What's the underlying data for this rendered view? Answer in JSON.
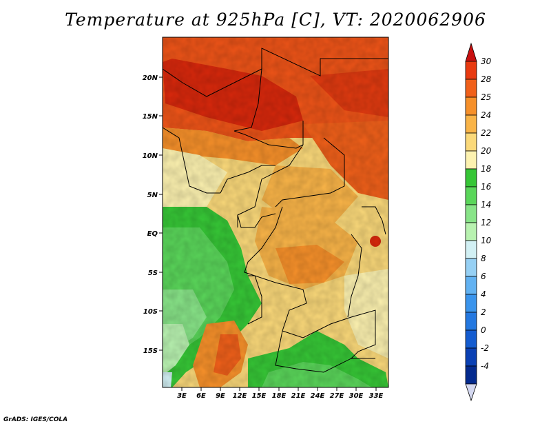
{
  "title": "Temperature at 925hPa [C], VT: 2020062906",
  "credit": "GrADS: IGES/COLA",
  "map": {
    "lat_labels": [
      "20N",
      "15N",
      "10N",
      "5N",
      "EQ",
      "5S",
      "10S",
      "15S"
    ],
    "lon_labels": [
      "3E",
      "6E",
      "9E",
      "12E",
      "15E",
      "18E",
      "21E",
      "24E",
      "27E",
      "30E",
      "33E"
    ]
  },
  "colorbar": {
    "labels": [
      "30",
      "28",
      "25",
      "24",
      "22",
      "20",
      "18",
      "16",
      "14",
      "12",
      "10",
      "8",
      "6",
      "4",
      "2",
      "0",
      "-2",
      "-4"
    ],
    "colors": [
      "#e83a10",
      "#f0601a",
      "#f6902a",
      "#f9b448",
      "#fbd97a",
      "#fdf2b0",
      "#36c636",
      "#5ad65a",
      "#88e488",
      "#b8f2b0",
      "#d2f0f4",
      "#96d0f4",
      "#62b2f2",
      "#3a94ec",
      "#2478e0",
      "#145cd0",
      "#0a40b4",
      "#042a8e",
      "#000a6e"
    ],
    "top_color": "#c81010",
    "bottom_color": "#d4d8f0"
  }
}
